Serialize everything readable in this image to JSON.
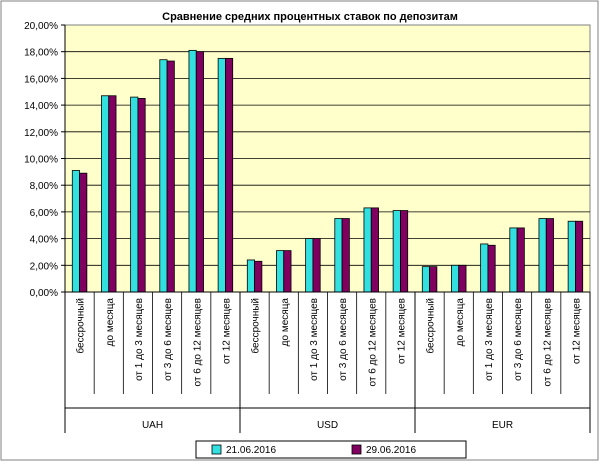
{
  "chart_data": {
    "type": "bar",
    "title": "Сравнение средних процентных ставок по депозитам",
    "ylim": [
      0,
      20
    ],
    "ytick_step": 2,
    "ytick_labels": [
      "0,00%",
      "2,00%",
      "4,00%",
      "6,00%",
      "8,00%",
      "10,00%",
      "12,00%",
      "14,00%",
      "16,00%",
      "18,00%",
      "20,00%"
    ],
    "grid": true,
    "legend_position": "bottom",
    "groups": [
      {
        "name": "UAH",
        "categories": [
          "бессрочный",
          "до месяца",
          "от 1 до 3 месяцев",
          "от 3 до 6 месяцев",
          "от 6 до 12 месяцев",
          "от 12 месяцев"
        ]
      },
      {
        "name": "USD",
        "categories": [
          "бессрочный",
          "до месяца",
          "от 1 до 3 месяцев",
          "от 3 до 6 месяцев",
          "от 6 до 12 месяцев",
          "от 12 месяцев"
        ]
      },
      {
        "name": "EUR",
        "categories": [
          "бессрочный",
          "до месяца",
          "от 1 до 3 месяцев",
          "от 3 до 6 месяцев",
          "от 6 до 12 месяцев",
          "от 12 месяцев"
        ]
      }
    ],
    "series": [
      {
        "name": "21.06.2016",
        "color": "#33e0e0",
        "values": [
          9.1,
          14.7,
          14.6,
          17.4,
          18.1,
          17.5,
          2.4,
          3.1,
          4.0,
          5.5,
          6.3,
          6.1,
          1.9,
          2.0,
          3.6,
          4.8,
          5.5,
          5.3
        ]
      },
      {
        "name": "29.06.2016",
        "color": "#800060",
        "values": [
          8.9,
          14.7,
          14.5,
          17.3,
          18.0,
          17.5,
          2.3,
          3.1,
          4.0,
          5.5,
          6.3,
          6.1,
          1.9,
          2.0,
          3.5,
          4.8,
          5.5,
          5.3
        ]
      }
    ],
    "plot_bg": "#ffffcc"
  }
}
